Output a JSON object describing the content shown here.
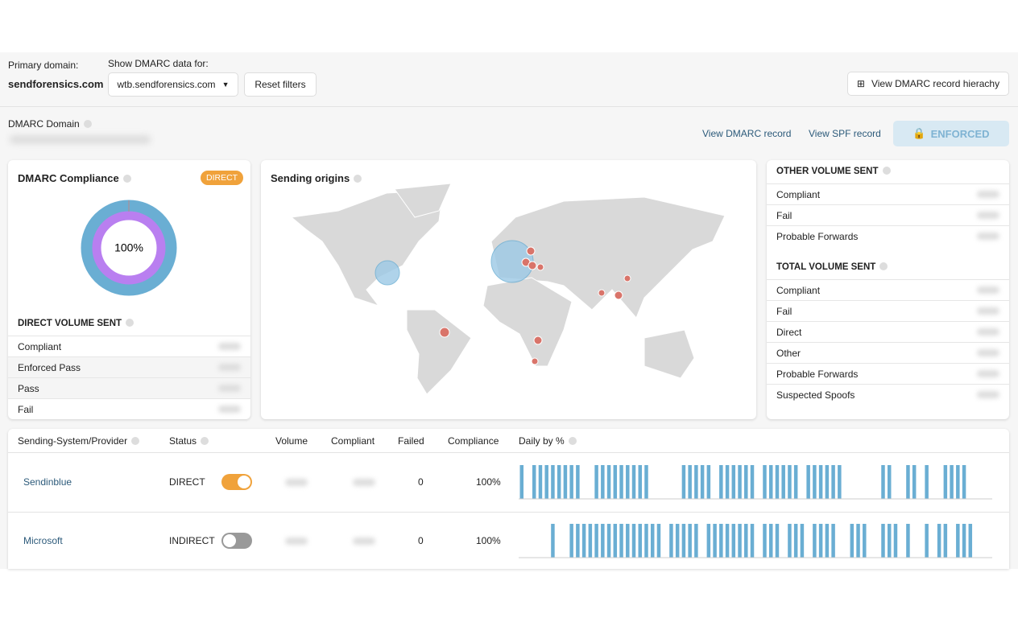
{
  "header": {
    "primary_domain_label": "Primary domain:",
    "primary_domain": "sendforensics.com",
    "show_label": "Show DMARC data for:",
    "domain_select": "wtb.sendforensics.com",
    "reset_button": "Reset filters",
    "hierarchy_button": "View DMARC record hierachy"
  },
  "domain_bar": {
    "label": "DMARC Domain",
    "view_dmarc": "View DMARC record",
    "view_spf": "View SPF record",
    "enforced": "ENFORCED"
  },
  "compliance": {
    "title": "DMARC Compliance",
    "badge": "DIRECT",
    "donut_label": "100%",
    "direct_title": "DIRECT VOLUME SENT",
    "rows": [
      "Compliant",
      "Enforced Pass",
      "Pass",
      "Fail"
    ]
  },
  "origins": {
    "title": "Sending origins"
  },
  "other": {
    "title": "OTHER VOLUME SENT",
    "rows": [
      "Compliant",
      "Fail",
      "Probable Forwards"
    ]
  },
  "total": {
    "title": "TOTAL VOLUME SENT",
    "rows": [
      "Compliant",
      "Fail",
      "Direct",
      "Other",
      "Probable Forwards",
      "Suspected Spoofs"
    ]
  },
  "table": {
    "columns": [
      "Sending-System/Provider",
      "Status",
      "Volume",
      "Compliant",
      "Failed",
      "Compliance",
      "Daily by %"
    ],
    "rows": [
      {
        "provider": "Sendinblue",
        "status": "DIRECT",
        "failed": "0",
        "compliance": "100%",
        "daily": [
          1,
          0,
          1,
          1,
          1,
          1,
          1,
          1,
          1,
          1,
          0,
          0,
          1,
          1,
          1,
          1,
          1,
          1,
          1,
          1,
          1,
          0,
          0,
          0,
          0,
          0,
          1,
          1,
          1,
          1,
          1,
          0,
          1,
          1,
          1,
          1,
          1,
          1,
          0,
          1,
          1,
          1,
          1,
          1,
          1,
          0,
          1,
          1,
          1,
          1,
          1,
          1,
          0,
          0,
          0,
          0,
          0,
          0,
          1,
          1,
          0,
          0,
          1,
          1,
          0,
          1,
          0,
          0,
          1,
          1,
          1,
          1,
          0,
          0,
          0,
          0
        ]
      },
      {
        "provider": "Microsoft",
        "status": "INDIRECT",
        "failed": "0",
        "compliance": "100%",
        "daily": [
          0,
          0,
          0,
          0,
          0,
          1,
          0,
          0,
          1,
          1,
          1,
          1,
          1,
          1,
          1,
          1,
          1,
          1,
          1,
          1,
          1,
          1,
          1,
          0,
          1,
          1,
          1,
          1,
          1,
          0,
          1,
          1,
          1,
          1,
          1,
          1,
          1,
          1,
          0,
          1,
          1,
          1,
          0,
          1,
          1,
          1,
          0,
          1,
          1,
          1,
          1,
          0,
          0,
          1,
          1,
          1,
          0,
          0,
          1,
          1,
          1,
          0,
          1,
          0,
          0,
          1,
          0,
          1,
          1,
          0,
          1,
          1,
          1,
          0,
          0,
          0
        ]
      }
    ]
  }
}
